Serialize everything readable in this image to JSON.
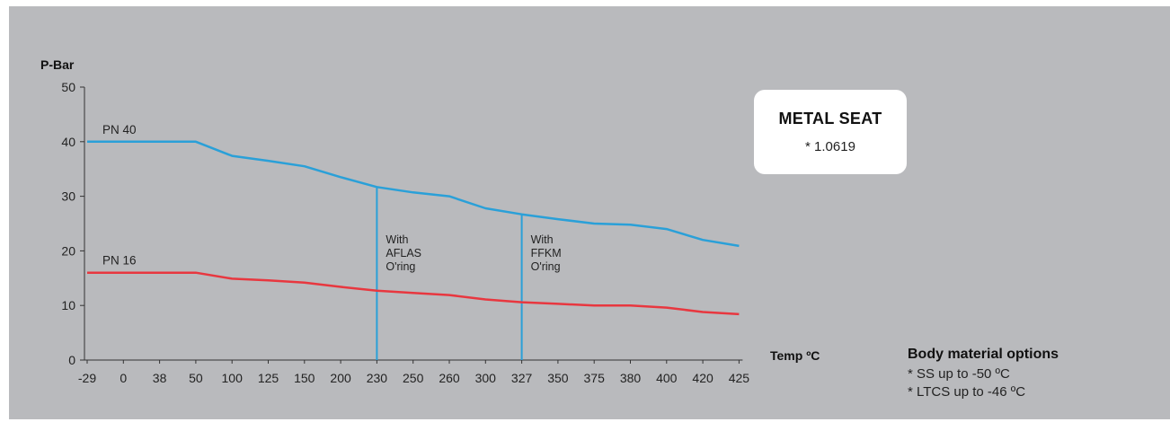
{
  "chart_data": {
    "type": "line",
    "xlabel": "Temp ºC",
    "ylabel": "P-Bar",
    "x": [
      "-29",
      "0",
      "38",
      "50",
      "100",
      "125",
      "150",
      "200",
      "230",
      "250",
      "260",
      "300",
      "327",
      "350",
      "375",
      "380",
      "400",
      "420",
      "425"
    ],
    "yticks": [
      0,
      10,
      20,
      30,
      40,
      50
    ],
    "ylim": [
      0,
      50
    ],
    "grid": false,
    "series": [
      {
        "name": "PN 40",
        "color": "#2aa0d8",
        "values": [
          40,
          40,
          40,
          40,
          37.4,
          36.5,
          35.5,
          33.5,
          31.7,
          30.7,
          30.0,
          27.8,
          26.7,
          25.8,
          25.0,
          24.8,
          24.0,
          22.0,
          20.9
        ]
      },
      {
        "name": "PN 16",
        "color": "#e8373f",
        "values": [
          16,
          16,
          16,
          16,
          14.9,
          14.6,
          14.2,
          13.4,
          12.7,
          12.3,
          11.9,
          11.1,
          10.6,
          10.3,
          10.0,
          10.0,
          9.6,
          8.8,
          8.4
        ]
      }
    ],
    "annotations": [
      {
        "x": "230",
        "lines": [
          "With",
          "AFLAS",
          "O'ring"
        ]
      },
      {
        "x": "327",
        "lines": [
          "With",
          "FFKM",
          "O'ring"
        ]
      }
    ]
  },
  "seat_card": {
    "title": "METAL SEAT",
    "note": "* 1.0619"
  },
  "body_material": {
    "title": "Body material options",
    "items": [
      "* SS up to -50 ºC",
      "* LTCS up to -46 ºC"
    ]
  }
}
